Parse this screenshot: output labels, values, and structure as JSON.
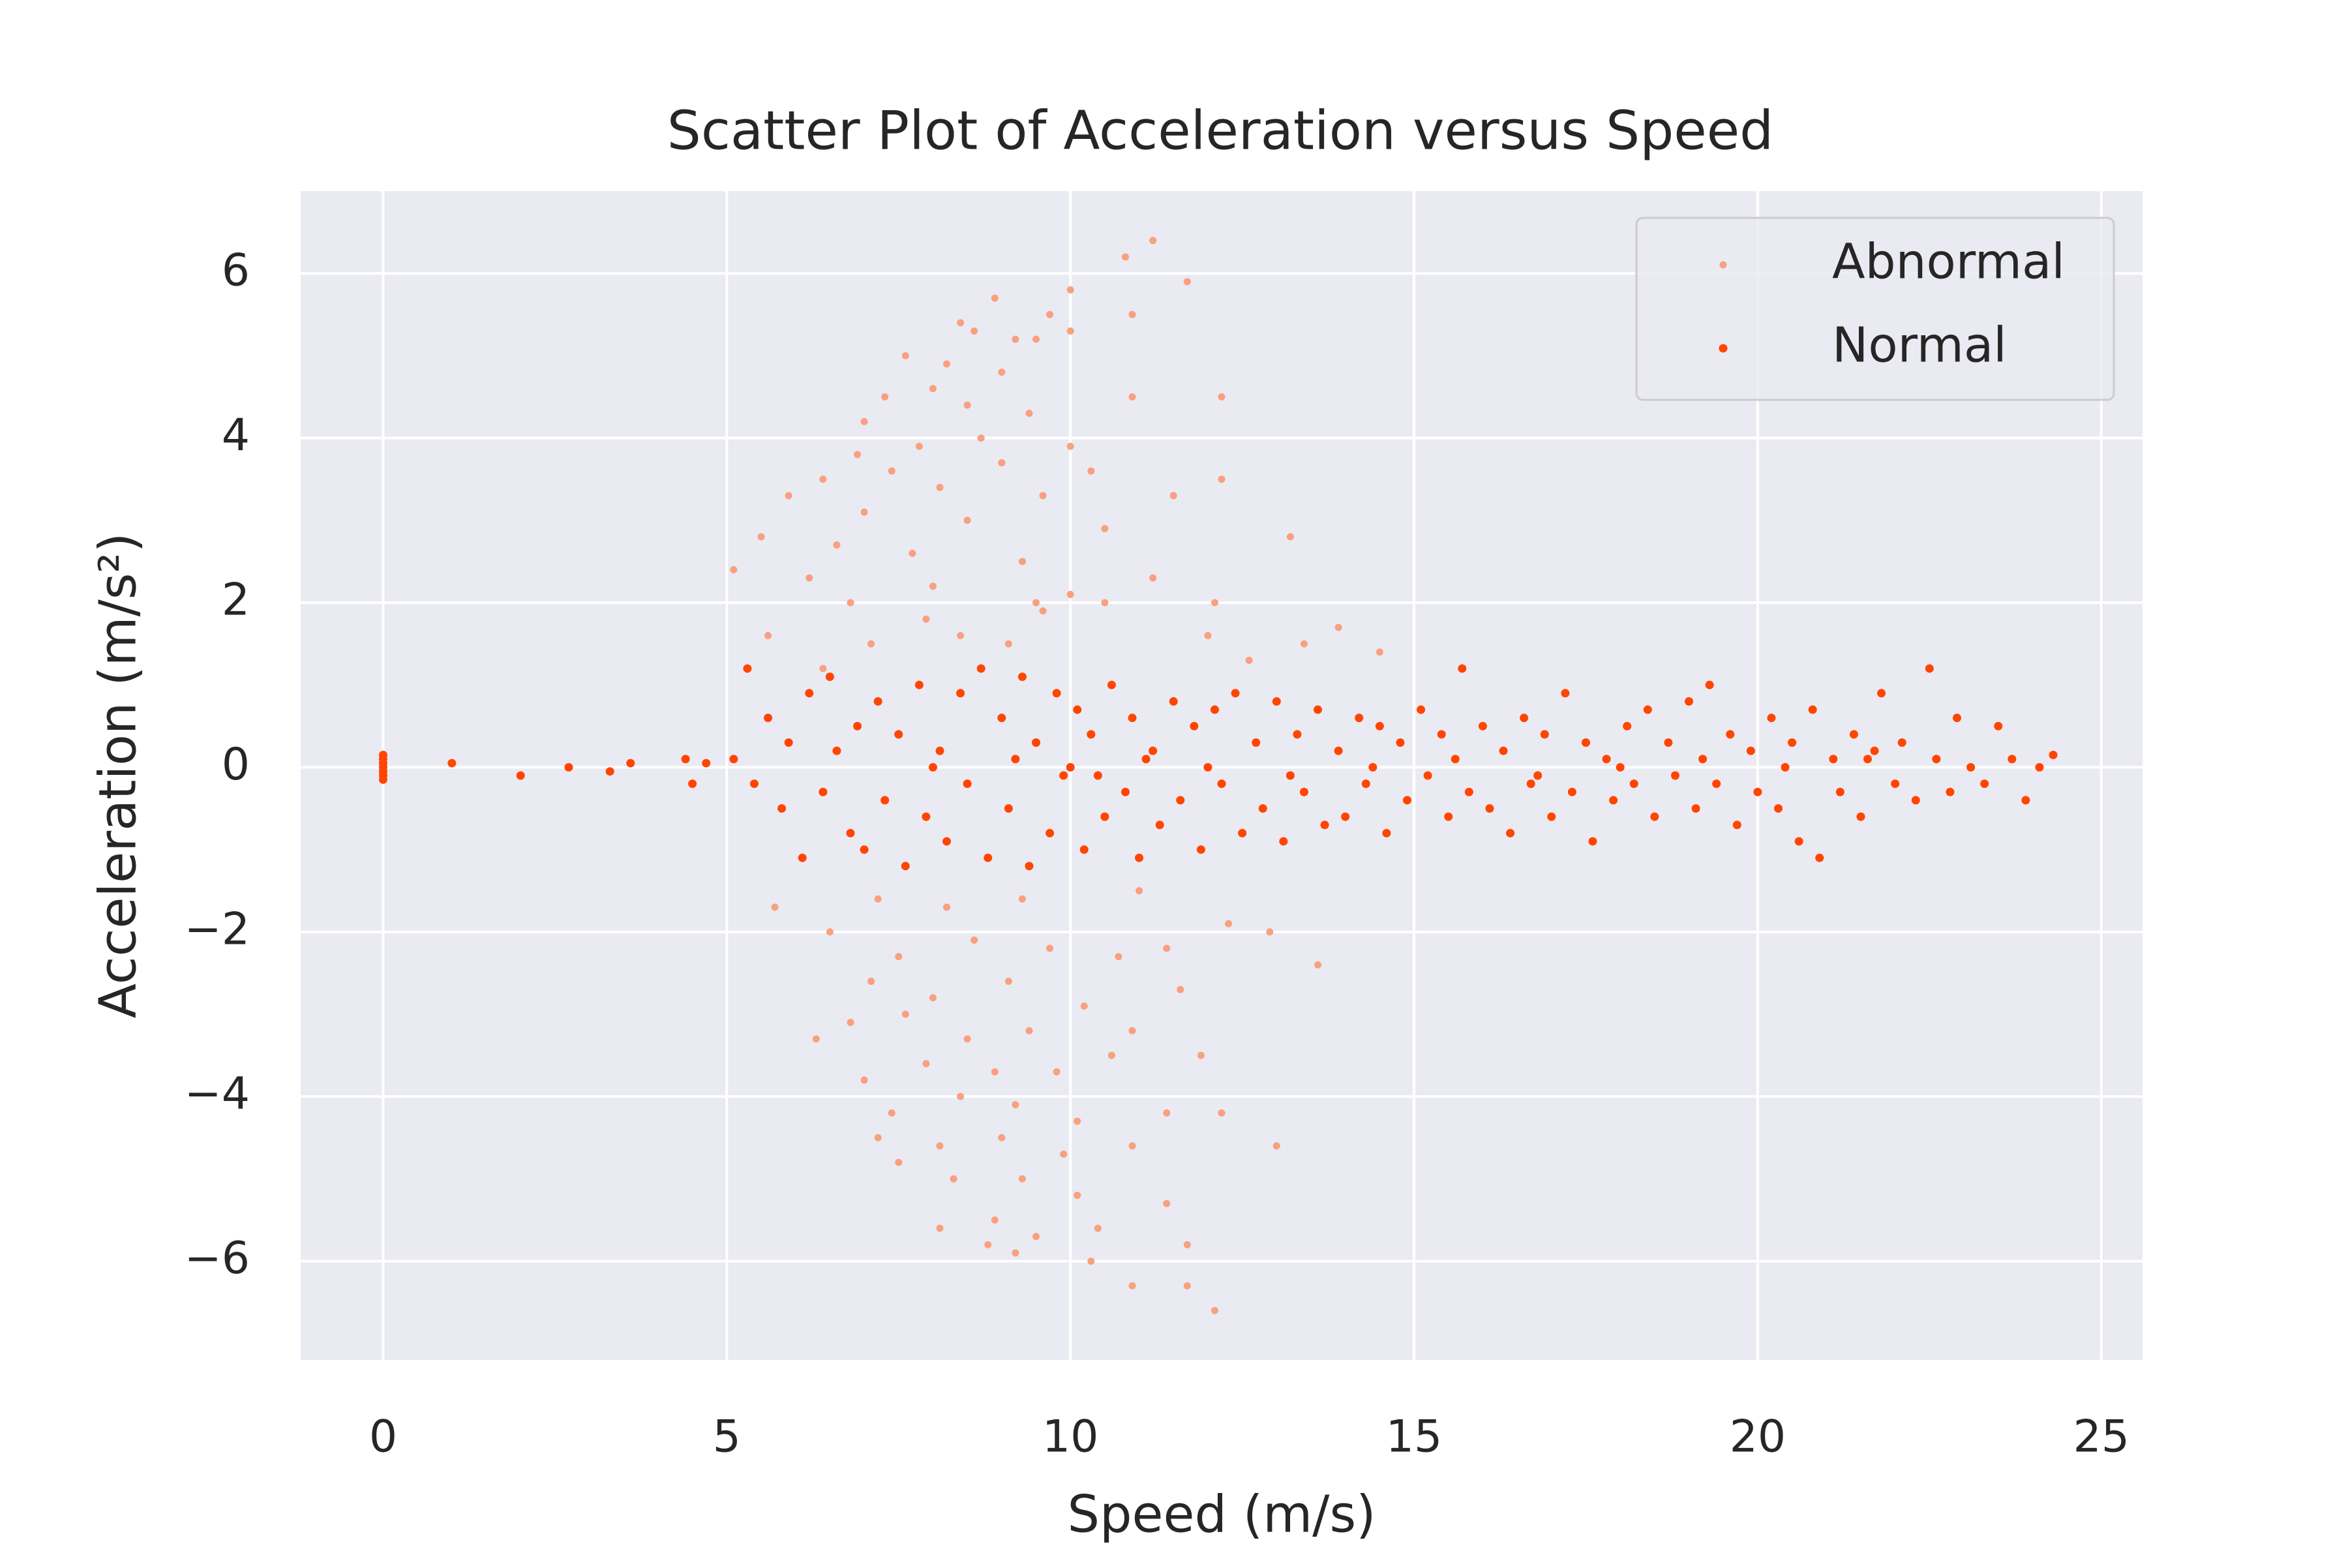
{
  "chart_data": {
    "type": "scatter",
    "title": "Scatter Plot of Acceleration versus Speed",
    "x_label": "Speed (m/s)",
    "y_label": "Acceleration (m/s²)",
    "xlim": [
      -1.2,
      25.6
    ],
    "ylim": [
      -7.2,
      7.0
    ],
    "xticks": [
      0,
      5,
      10,
      15,
      20,
      25
    ],
    "yticks": [
      {
        "value": -6,
        "label": "−6"
      },
      {
        "value": -4,
        "label": "−4"
      },
      {
        "value": -2,
        "label": "−2"
      },
      0,
      2,
      4,
      6
    ],
    "grid": true,
    "legend": "upper right",
    "series": [
      {
        "name": "Abnormal",
        "color": "#f9a07e",
        "x": [
          11.2,
          10.8,
          11.7,
          10.0,
          9.7,
          8.9,
          10.9,
          10.0,
          8.4,
          9.2,
          9.5,
          8.6,
          7.6,
          8.2,
          9.0,
          8.0,
          7.3,
          8.5,
          9.4,
          10.9,
          12.2,
          7.0,
          8.7,
          7.8,
          6.9,
          9.0,
          10.0,
          6.4,
          7.4,
          8.1,
          9.6,
          10.3,
          12.2,
          11.5,
          5.9,
          7.0,
          8.5,
          10.5,
          13.2,
          5.5,
          6.6,
          7.7,
          9.3,
          5.1,
          6.2,
          8.0,
          11.2,
          9.5,
          10.5,
          12.1,
          6.8,
          7.9,
          9.6,
          10.0,
          8.4,
          12.0,
          5.6,
          13.9,
          7.1,
          9.1,
          13.4,
          6.4,
          12.6,
          14.5,
          5.7,
          7.2,
          8.2,
          9.3,
          11.0,
          12.3,
          6.5,
          7.5,
          8.6,
          9.7,
          10.7,
          11.4,
          12.9,
          13.6,
          7.1,
          8.0,
          9.1,
          10.2,
          11.6,
          6.8,
          7.6,
          8.5,
          9.4,
          10.9,
          6.3,
          11.9,
          7.0,
          7.9,
          8.9,
          9.8,
          10.6,
          12.2,
          7.4,
          8.4,
          9.2,
          10.1,
          11.4,
          7.2,
          8.1,
          9.0,
          9.9,
          10.9,
          13.0,
          7.5,
          8.3,
          9.3,
          10.1,
          11.4,
          8.1,
          8.9,
          9.5,
          10.4,
          11.7,
          9.2,
          10.3,
          10.9,
          11.7,
          12.1,
          8.8
        ],
        "y": [
          6.4,
          6.2,
          5.9,
          5.8,
          5.5,
          5.7,
          5.5,
          5.3,
          5.4,
          5.2,
          5.2,
          5.3,
          5.0,
          4.9,
          4.8,
          4.6,
          4.5,
          4.4,
          4.3,
          4.5,
          4.5,
          4.2,
          4.0,
          3.9,
          3.8,
          3.7,
          3.9,
          3.5,
          3.6,
          3.4,
          3.3,
          3.6,
          3.5,
          3.3,
          3.3,
          3.1,
          3.0,
          2.9,
          2.8,
          2.8,
          2.7,
          2.6,
          2.5,
          2.4,
          2.3,
          2.2,
          2.3,
          2.0,
          2.0,
          2.0,
          2.0,
          1.8,
          1.9,
          2.1,
          1.6,
          1.6,
          1.6,
          1.7,
          1.5,
          1.5,
          1.5,
          1.2,
          1.3,
          1.4,
          -1.7,
          -1.6,
          -1.7,
          -1.6,
          -1.5,
          -1.9,
          -2.0,
          -2.3,
          -2.1,
          -2.2,
          -2.3,
          -2.2,
          -2.0,
          -2.4,
          -2.6,
          -2.8,
          -2.6,
          -2.9,
          -2.7,
          -3.1,
          -3.0,
          -3.3,
          -3.2,
          -3.2,
          -3.3,
          -3.5,
          -3.8,
          -3.6,
          -3.7,
          -3.7,
          -3.5,
          -4.2,
          -4.2,
          -4.0,
          -4.1,
          -4.3,
          -4.2,
          -4.5,
          -4.6,
          -4.5,
          -4.7,
          -4.6,
          -4.6,
          -4.8,
          -5.0,
          -5.0,
          -5.2,
          -5.3,
          -5.6,
          -5.5,
          -5.7,
          -5.6,
          -5.8,
          -5.9,
          -6.0,
          -6.3,
          -6.3,
          -6.6,
          -5.8
        ]
      },
      {
        "name": "Normal",
        "color": "#ff4500",
        "x": [
          0,
          0,
          0,
          0,
          0,
          0,
          0,
          1.0,
          2.0,
          2.7,
          3.3,
          3.6,
          4.4,
          4.5,
          4.7,
          5.1,
          5.3,
          5.4,
          5.6,
          5.8,
          5.9,
          6.1,
          6.2,
          6.4,
          6.5,
          6.6,
          6.8,
          6.9,
          7.0,
          7.2,
          7.3,
          7.5,
          7.6,
          7.8,
          7.9,
          8.1,
          8.2,
          8.4,
          8.5,
          8.7,
          8.8,
          9.0,
          9.1,
          9.3,
          9.4,
          9.5,
          9.7,
          9.8,
          9.9,
          10.1,
          10.2,
          10.3,
          10.5,
          10.6,
          10.8,
          10.9,
          11.0,
          11.2,
          11.3,
          11.5,
          11.6,
          11.8,
          11.9,
          12.1,
          12.2,
          12.4,
          12.5,
          12.7,
          12.8,
          13.0,
          13.1,
          13.3,
          13.4,
          13.6,
          13.7,
          13.9,
          14.0,
          14.2,
          14.3,
          14.5,
          14.6,
          14.8,
          14.9,
          15.1,
          15.2,
          15.4,
          15.5,
          15.7,
          15.8,
          16.0,
          16.1,
          16.3,
          16.4,
          16.6,
          16.7,
          16.9,
          17.0,
          17.2,
          17.3,
          17.5,
          17.6,
          17.8,
          17.9,
          18.1,
          18.2,
          18.4,
          18.5,
          18.7,
          18.8,
          19.0,
          19.1,
          19.3,
          19.4,
          19.6,
          19.7,
          19.9,
          20.0,
          20.2,
          20.3,
          20.5,
          20.6,
          20.8,
          20.9,
          21.1,
          21.2,
          21.4,
          21.5,
          21.7,
          21.8,
          22.0,
          22.1,
          22.3,
          22.5,
          22.6,
          22.8,
          22.9,
          23.1,
          23.3,
          23.5,
          23.7,
          23.9,
          24.1,
          24.3,
          8.0,
          9.2,
          10.0,
          10.4,
          11.1,
          12.0,
          13.2,
          14.4,
          15.6,
          16.8,
          18.0,
          19.2,
          20.4,
          21.6
        ],
        "y": [
          0.15,
          0.1,
          0.05,
          0,
          -0.05,
          -0.1,
          -0.15,
          0.05,
          -0.1,
          0,
          -0.05,
          0.05,
          0.1,
          -0.2,
          0.05,
          0.1,
          1.2,
          -0.2,
          0.6,
          -0.5,
          0.3,
          -1.1,
          0.9,
          -0.3,
          1.1,
          0.2,
          -0.8,
          0.5,
          -1.0,
          0.8,
          -0.4,
          0.4,
          -1.2,
          1.0,
          -0.6,
          0.2,
          -0.9,
          0.9,
          -0.2,
          1.2,
          -1.1,
          0.6,
          -0.5,
          1.1,
          -1.2,
          0.3,
          -0.8,
          0.9,
          -0.1,
          0.7,
          -1.0,
          0.4,
          -0.6,
          1.0,
          -0.3,
          0.6,
          -1.1,
          0.2,
          -0.7,
          0.8,
          -0.4,
          0.5,
          -1.0,
          0.7,
          -0.2,
          0.9,
          -0.8,
          0.3,
          -0.5,
          0.8,
          -0.9,
          0.4,
          -0.3,
          0.7,
          -0.7,
          0.2,
          -0.6,
          0.6,
          -0.2,
          0.5,
          -0.8,
          0.3,
          -0.4,
          0.7,
          -0.1,
          0.4,
          -0.6,
          1.2,
          -0.3,
          0.5,
          -0.5,
          0.2,
          -0.8,
          0.6,
          -0.2,
          0.4,
          -0.6,
          0.9,
          -0.3,
          0.3,
          -0.9,
          0.1,
          -0.4,
          0.5,
          -0.2,
          0.7,
          -0.6,
          0.3,
          -0.1,
          0.8,
          -0.5,
          1.0,
          -0.2,
          0.4,
          -0.7,
          0.2,
          -0.3,
          0.6,
          -0.5,
          0.3,
          -0.9,
          0.7,
          -1.1,
          0.1,
          -0.3,
          0.4,
          -0.6,
          0.2,
          0.9,
          -0.2,
          0.3,
          -0.4,
          1.2,
          0.1,
          -0.3,
          0.6,
          0.0,
          -0.2,
          0.5,
          0.1,
          -0.4,
          0.0,
          0.15,
          0.0,
          0.1,
          0.0,
          -0.1,
          0.1,
          0.0,
          -0.1,
          0.0,
          0.1,
          -0.1,
          0.0,
          0.1,
          0.0,
          0.1
        ]
      }
    ]
  }
}
